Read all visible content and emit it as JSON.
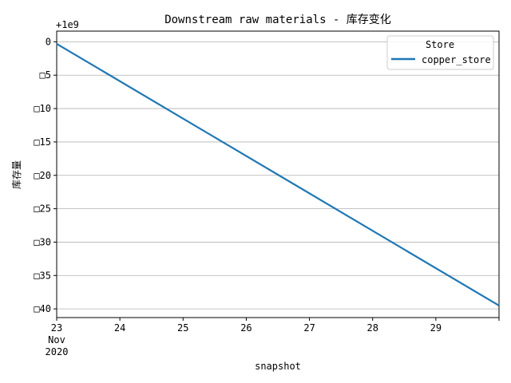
{
  "chart_data": {
    "type": "line",
    "title": "Downstream raw materials - 库存变化",
    "xlabel": "snapshot",
    "ylabel": "库存量",
    "offset_text": "+1e9",
    "x_tick_labels": [
      "23",
      "24",
      "25",
      "26",
      "27",
      "28",
      "29"
    ],
    "x_tick_sublabels": [
      "Nov",
      "2020"
    ],
    "y_tick_labels": [
      "0",
      "□5",
      "□10",
      "□15",
      "□20",
      "□25",
      "□30",
      "□35",
      "□40"
    ],
    "y_ticks": [
      0,
      -5,
      -10,
      -15,
      -20,
      -25,
      -30,
      -35,
      -40
    ],
    "ylim": [
      -41.3,
      1.6
    ],
    "xlim": [
      "2020-11-23",
      "2020-11-30"
    ],
    "grid": "horizontal",
    "legend": {
      "title": "Store",
      "placement": "top-right"
    },
    "series": [
      {
        "name": "copper_store",
        "color": "#1f77b4",
        "x": [
          "2020-11-23",
          "2020-11-30"
        ],
        "y": [
          -0.3,
          -39.5
        ]
      }
    ]
  }
}
